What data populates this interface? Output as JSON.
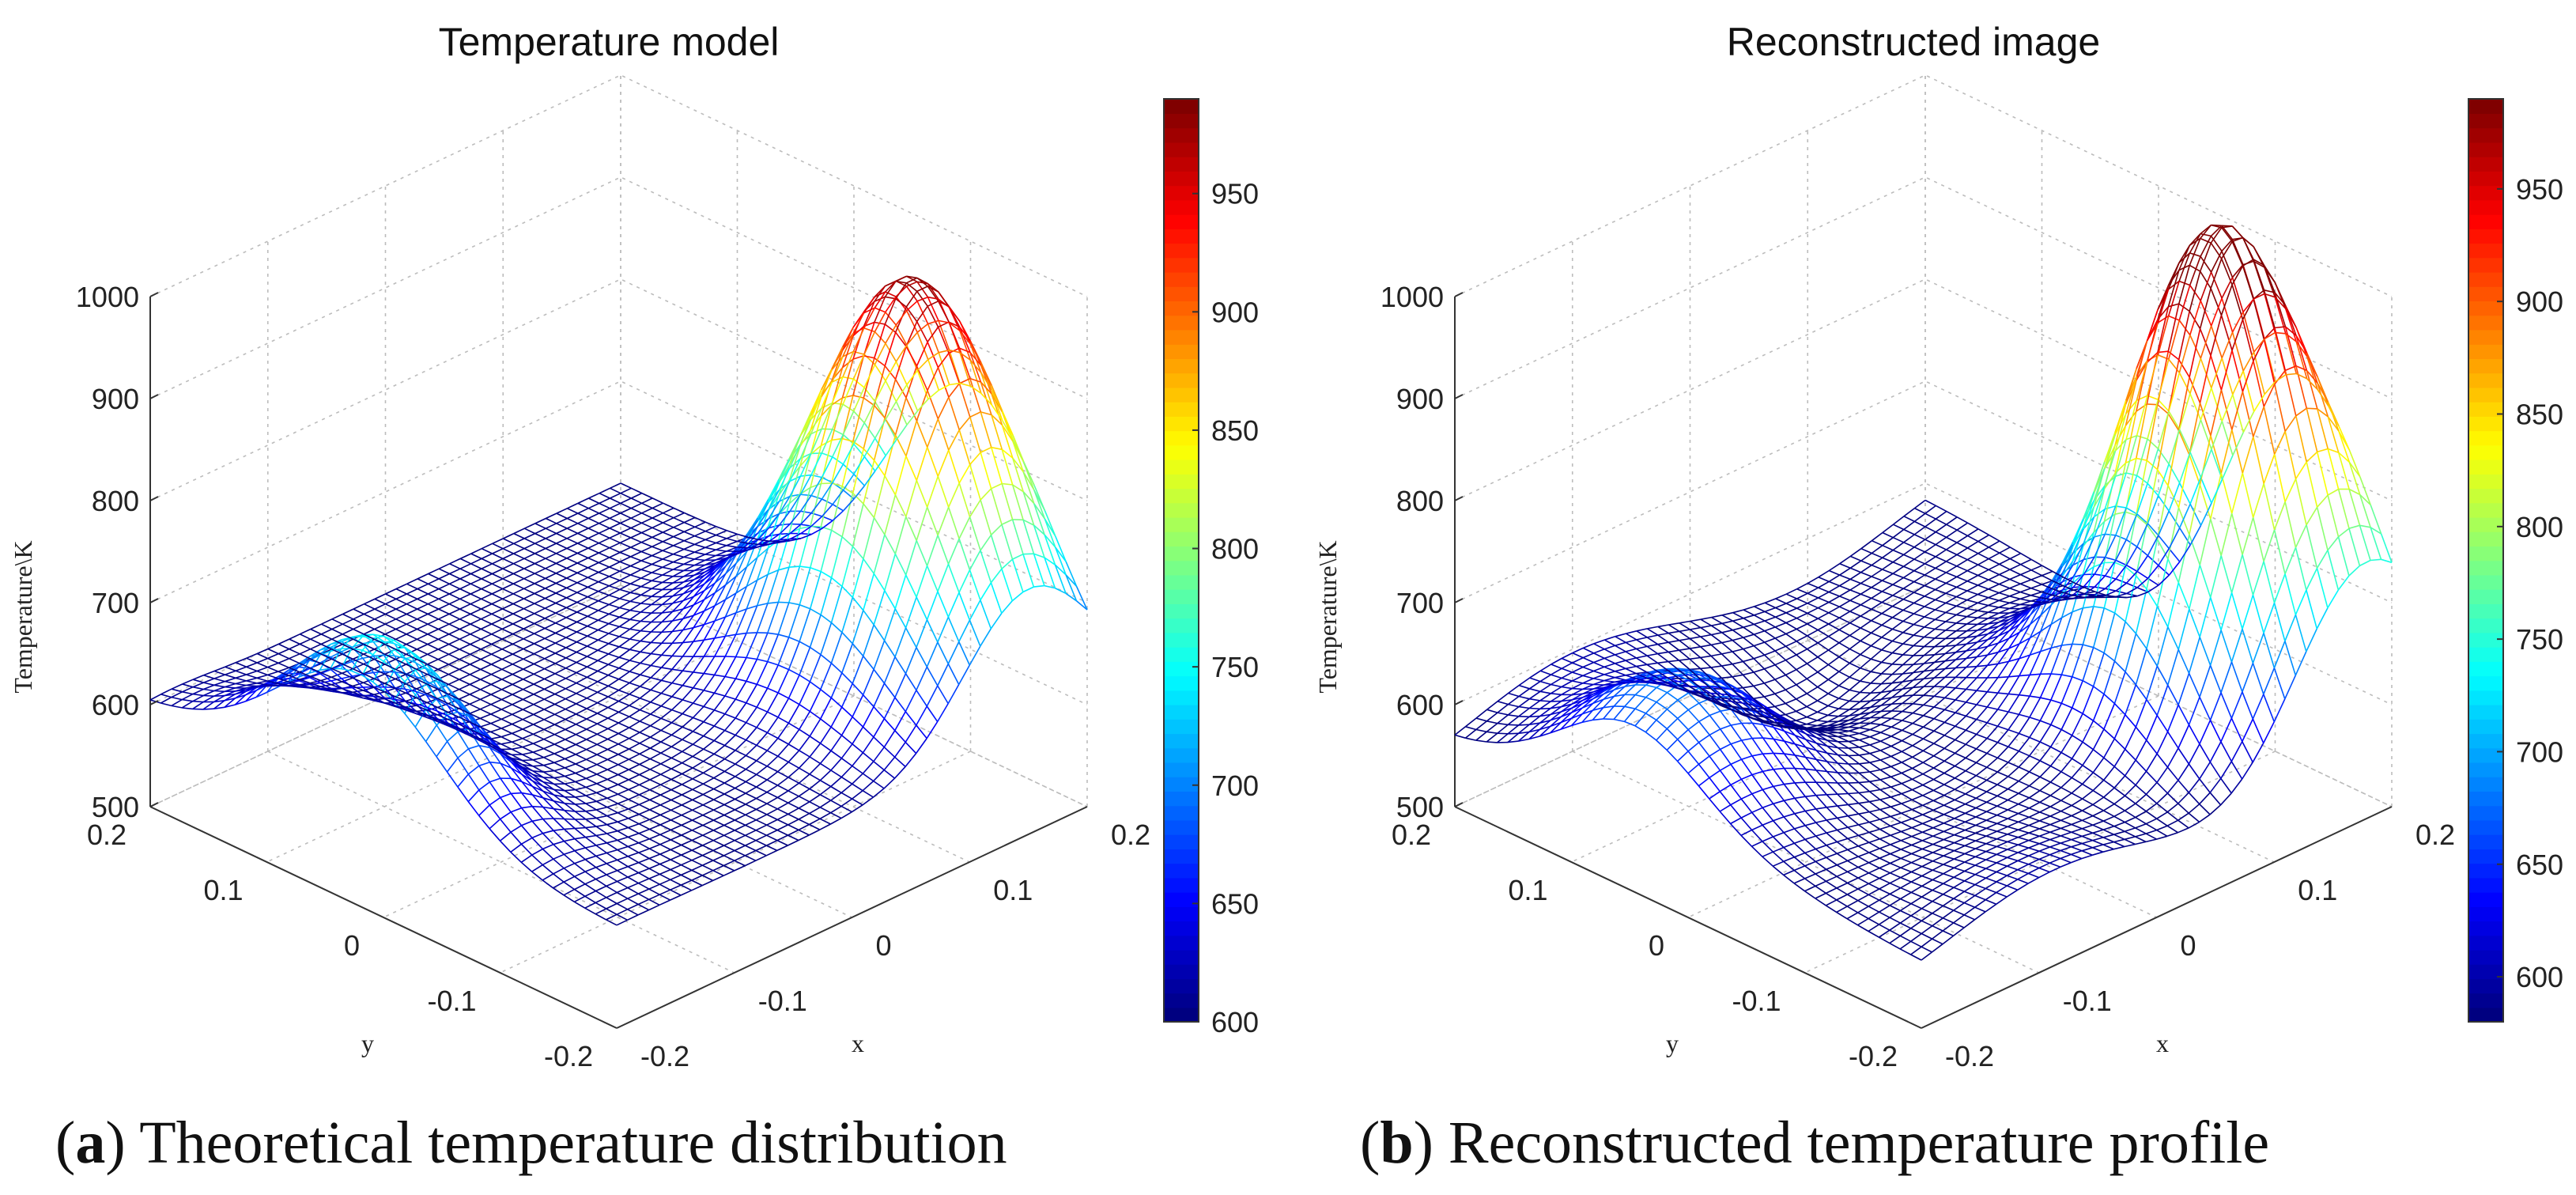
{
  "chart_data": [
    {
      "type": "surface",
      "title": "Temperature model",
      "caption_letter": "a",
      "caption_text": ") Theoretical temperature distribution",
      "zlabel": "Temperature\\K",
      "xlabel": "x",
      "ylabel": "y",
      "x_ticks": [
        "-0.2",
        "-0.1",
        "0",
        "0.1",
        "0.2"
      ],
      "y_ticks": [
        "0.2",
        "0.1",
        "0",
        "-0.1",
        "-0.2"
      ],
      "z_ticks": [
        "500",
        "600",
        "700",
        "800",
        "900",
        "1000"
      ],
      "xlim": [
        -0.2,
        0.2
      ],
      "ylim": [
        -0.2,
        0.2
      ],
      "zlim": [
        500,
        1000
      ],
      "grid": true,
      "colorbar": {
        "range": [
          600,
          990
        ],
        "ticks": [
          "600",
          "650",
          "700",
          "750",
          "800",
          "850",
          "900",
          "950"
        ]
      },
      "surface_peaks": [
        {
          "x": 0.15,
          "y": -0.1,
          "temperature": 990
        },
        {
          "x": -0.18,
          "y": 0.02,
          "temperature": 750
        }
      ],
      "surface_baseline": 600,
      "colormap": "jet"
    },
    {
      "type": "surface",
      "title": "Reconstructed image",
      "caption_letter": "b",
      "caption_text": ") Reconstructed temperature profile",
      "zlabel": "Temperature\\K",
      "xlabel": "x",
      "ylabel": "y",
      "x_ticks": [
        "-0.2",
        "-0.1",
        "0",
        "0.1",
        "0.2"
      ],
      "y_ticks": [
        "0.2",
        "0.1",
        "0",
        "-0.1",
        "-0.2"
      ],
      "z_ticks": [
        "500",
        "600",
        "700",
        "800",
        "900",
        "1000"
      ],
      "xlim": [
        -0.2,
        0.2
      ],
      "ylim": [
        -0.2,
        0.2
      ],
      "zlim": [
        500,
        1000
      ],
      "grid": true,
      "colorbar": {
        "range": [
          580,
          990
        ],
        "ticks": [
          "600",
          "650",
          "700",
          "750",
          "800",
          "850",
          "900",
          "950"
        ]
      },
      "surface_peaks": [
        {
          "x": 0.14,
          "y": -0.1,
          "temperature": 990
        },
        {
          "x": -0.15,
          "y": 0.05,
          "temperature": 700
        }
      ],
      "surface_baseline": 580,
      "colormap": "jet"
    }
  ]
}
